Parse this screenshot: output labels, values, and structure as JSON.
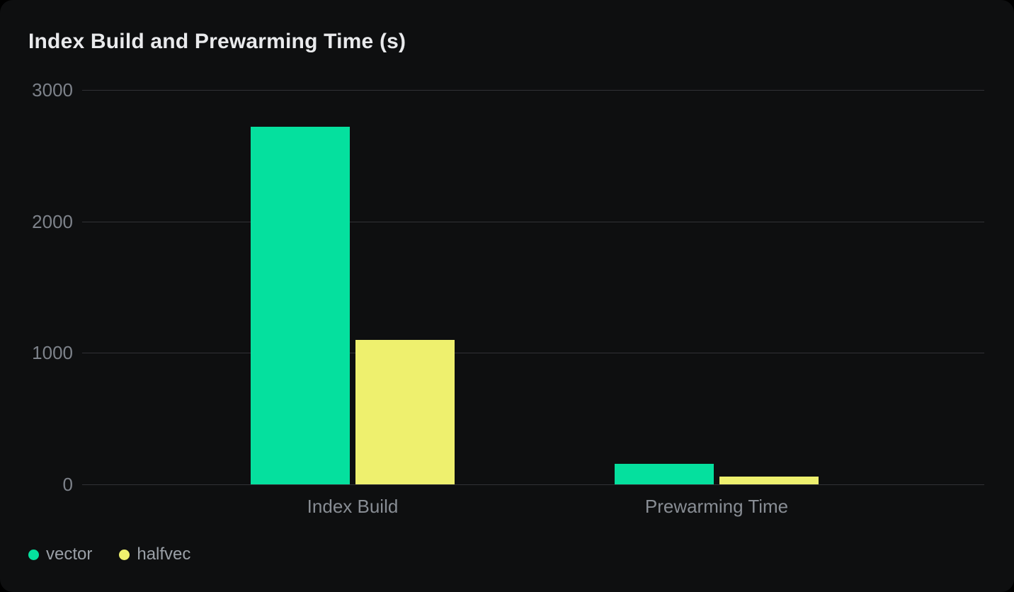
{
  "chart_data": {
    "type": "bar",
    "title": "Index Build and Prewarming Time (s)",
    "categories": [
      "Index Build",
      "Prewarming Time"
    ],
    "series": [
      {
        "name": "vector",
        "color": "#05e09e",
        "values": [
          2720,
          155
        ]
      },
      {
        "name": "halfvec",
        "color": "#eef06e",
        "values": [
          1100,
          60
        ]
      }
    ],
    "xlabel": "",
    "ylabel": "",
    "ylim": [
      0,
      3000
    ],
    "yticks": [
      0,
      1000,
      2000,
      3000
    ],
    "grid": "horizontal",
    "legend_position": "bottom-left"
  },
  "theme": {
    "page_background": "#000000",
    "card_background": "#0e0f10",
    "title_color": "#e9eaec",
    "tick_color": "#7d828a",
    "category_color": "#888d94",
    "legend_color": "#9aa0a7",
    "gridline_color": "#313135"
  }
}
